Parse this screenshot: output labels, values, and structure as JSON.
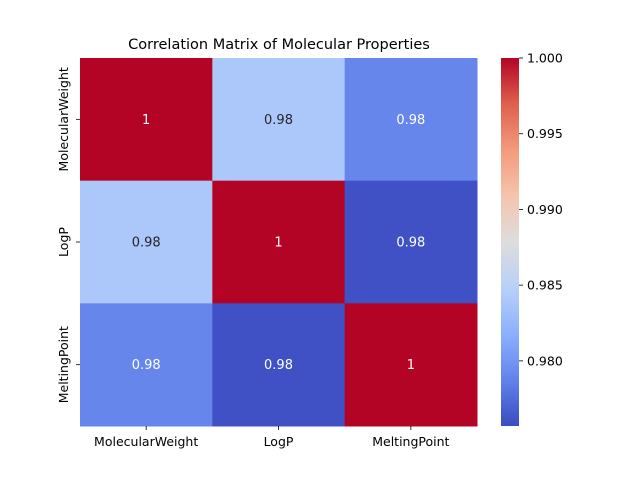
{
  "chart_data": {
    "type": "heatmap",
    "title": "Correlation Matrix of Molecular Properties",
    "xlabel": "",
    "ylabel": "",
    "x_categories": [
      "MolecularWeight",
      "LogP",
      "MeltingPoint"
    ],
    "y_categories": [
      "MolecularWeight",
      "LogP",
      "MeltingPoint"
    ],
    "values": [
      [
        1.0,
        0.984,
        0.979
      ],
      [
        0.984,
        1.0,
        0.976
      ],
      [
        0.979,
        0.976,
        1.0
      ]
    ],
    "annotations": [
      [
        "1",
        "0.98",
        "0.98"
      ],
      [
        "0.98",
        "1",
        "0.98"
      ],
      [
        "0.98",
        "0.98",
        "1"
      ]
    ],
    "colormap": "coolwarm",
    "colorbar": {
      "vmin": 0.9757,
      "vmax": 1.0,
      "ticks": [
        0.98,
        0.985,
        0.99,
        0.995,
        1.0
      ],
      "tick_labels": [
        "0.980",
        "0.985",
        "0.990",
        "0.995",
        "1.000"
      ]
    },
    "grid": false,
    "legend": "colorbar-right"
  }
}
